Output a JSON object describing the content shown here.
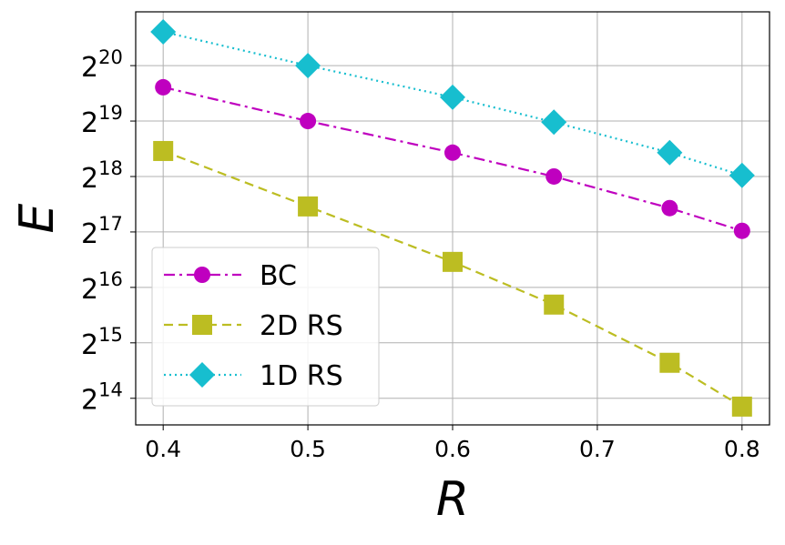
{
  "chart_data": {
    "type": "line",
    "xlabel": "R",
    "ylabel": "E",
    "yscale": "log2",
    "x": [
      0.4,
      0.5,
      0.6,
      0.67,
      0.75,
      0.8
    ],
    "xlim": [
      0.381,
      0.819
    ],
    "ylim_log2": [
      13.52,
      20.97
    ],
    "xticks": [
      "0.4",
      "0.5",
      "0.6",
      "0.7",
      "0.8"
    ],
    "xtick_values": [
      0.4,
      0.5,
      0.6,
      0.7,
      0.8
    ],
    "ytick_base": "2",
    "ytick_exponents": [
      "14",
      "15",
      "16",
      "17",
      "18",
      "19",
      "20"
    ],
    "grid": true,
    "legend_position": "lower-left",
    "series": [
      {
        "name": "BC",
        "color": "#bf00bf",
        "marker": "circle",
        "linestyle": "dashdot",
        "log2_values": [
          19.61,
          19.0,
          18.43,
          18.0,
          17.43,
          17.02
        ]
      },
      {
        "name": "2D RS",
        "color": "#bcbd22",
        "marker": "square",
        "linestyle": "dashed",
        "log2_values": [
          18.46,
          17.46,
          16.46,
          15.69,
          14.64,
          13.85
        ]
      },
      {
        "name": "1D RS",
        "color": "#17becf",
        "marker": "diamond",
        "linestyle": "dotted",
        "log2_values": [
          20.61,
          20.0,
          19.43,
          18.98,
          18.43,
          18.02
        ]
      }
    ]
  }
}
